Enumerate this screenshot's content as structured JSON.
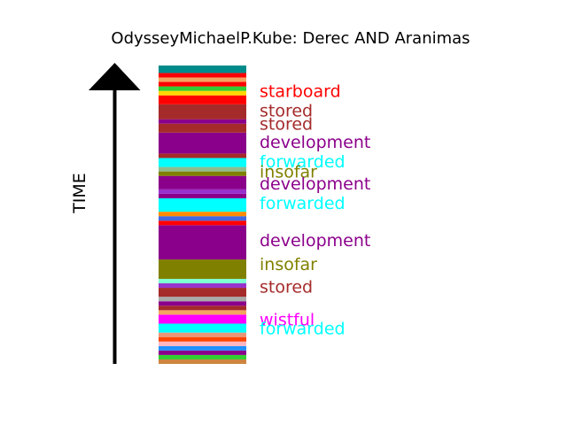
{
  "chart_data": {
    "type": "bar",
    "title": "OdysseyMichaelP.Kube: Derec AND Aranimas",
    "ylabel": "TIME",
    "orientation": "stacked-vertical-bands",
    "time_direction": "bottom-to-top",
    "ylim": [
      0,
      100
    ],
    "bands": [
      {
        "color": "#cd853f",
        "start": 0.0,
        "end": 1.5
      },
      {
        "color": "#32cd32",
        "start": 1.5,
        "end": 3.0
      },
      {
        "color": "#8b008b",
        "start": 3.0,
        "end": 4.5
      },
      {
        "color": "#1e90ff",
        "start": 4.5,
        "end": 6.0
      },
      {
        "color": "#ffb6c1",
        "start": 6.0,
        "end": 7.5
      },
      {
        "color": "#ff4500",
        "start": 7.5,
        "end": 9.0
      },
      {
        "color": "#e9967a",
        "start": 9.0,
        "end": 10.5
      },
      {
        "color": "#00ffff",
        "start": 10.5,
        "end": 13.5
      },
      {
        "color": "#ff00ff",
        "start": 13.5,
        "end": 16.5
      },
      {
        "color": "#f4a460",
        "start": 16.5,
        "end": 18.0
      },
      {
        "color": "#a52a2a",
        "start": 18.0,
        "end": 19.5
      },
      {
        "color": "#8b008b",
        "start": 19.5,
        "end": 21.0
      },
      {
        "color": "#a9a9a9",
        "start": 21.0,
        "end": 22.5
      },
      {
        "color": "#a52a2a",
        "start": 22.5,
        "end": 25.5
      },
      {
        "color": "#9932cc",
        "start": 25.5,
        "end": 27.0
      },
      {
        "color": "#7fffd4",
        "start": 27.0,
        "end": 28.5
      },
      {
        "color": "#808000",
        "start": 28.5,
        "end": 35.0
      },
      {
        "color": "#8b008b",
        "start": 35.0,
        "end": 46.5
      },
      {
        "color": "#ff0000",
        "start": 46.5,
        "end": 48.0
      },
      {
        "color": "#4169e1",
        "start": 48.0,
        "end": 49.5
      },
      {
        "color": "#ff8c00",
        "start": 49.5,
        "end": 51.0
      },
      {
        "color": "#00ffff",
        "start": 51.0,
        "end": 55.5
      },
      {
        "color": "#8b008b",
        "start": 55.5,
        "end": 57.0
      },
      {
        "color": "#9932cc",
        "start": 57.0,
        "end": 58.5
      },
      {
        "color": "#8b008b",
        "start": 58.5,
        "end": 63.0
      },
      {
        "color": "#808000",
        "start": 63.0,
        "end": 64.5
      },
      {
        "color": "#8fbc8f",
        "start": 64.5,
        "end": 66.0
      },
      {
        "color": "#00ffff",
        "start": 66.0,
        "end": 69.0
      },
      {
        "color": "#a52a2a",
        "start": 69.0,
        "end": 70.5
      },
      {
        "color": "#8b008b",
        "start": 70.5,
        "end": 77.5
      },
      {
        "color": "#a52a2a",
        "start": 77.5,
        "end": 80.5
      },
      {
        "color": "#8b008b",
        "start": 80.5,
        "end": 82.0
      },
      {
        "color": "#a52a2a",
        "start": 82.0,
        "end": 87.0
      },
      {
        "color": "#ff0000",
        "start": 87.0,
        "end": 90.0
      },
      {
        "color": "#ffd700",
        "start": 90.0,
        "end": 91.5
      },
      {
        "color": "#32cd32",
        "start": 91.5,
        "end": 93.0
      },
      {
        "color": "#ff0000",
        "start": 93.0,
        "end": 94.5
      },
      {
        "color": "#f4a460",
        "start": 94.5,
        "end": 96.0
      },
      {
        "color": "#ff0000",
        "start": 96.0,
        "end": 97.5
      },
      {
        "color": "#008b8b",
        "start": 97.5,
        "end": 100.0
      }
    ],
    "labels": [
      {
        "text": "starboard",
        "color": "#ff0000",
        "position": 91.5
      },
      {
        "text": "stored",
        "color": "#a52a2a",
        "position": 85.0
      },
      {
        "text": "stored",
        "color": "#a52a2a",
        "position": 80.5
      },
      {
        "text": "development",
        "color": "#8b008b",
        "position": 74.5
      },
      {
        "text": "forwarded",
        "color": "#00ffff",
        "position": 68.0
      },
      {
        "text": "insofar",
        "color": "#808000",
        "position": 64.5
      },
      {
        "text": "development",
        "color": "#8b008b",
        "position": 60.5
      },
      {
        "text": "forwarded",
        "color": "#00ffff",
        "position": 54.0
      },
      {
        "text": "development",
        "color": "#8b008b",
        "position": 41.5
      },
      {
        "text": "insofar",
        "color": "#808000",
        "position": 33.5
      },
      {
        "text": "stored",
        "color": "#a52a2a",
        "position": 26.0
      },
      {
        "text": "wistful",
        "color": "#ff00ff",
        "position": 15.0
      },
      {
        "text": "forwarded",
        "color": "#00ffff",
        "position": 12.0
      }
    ]
  }
}
